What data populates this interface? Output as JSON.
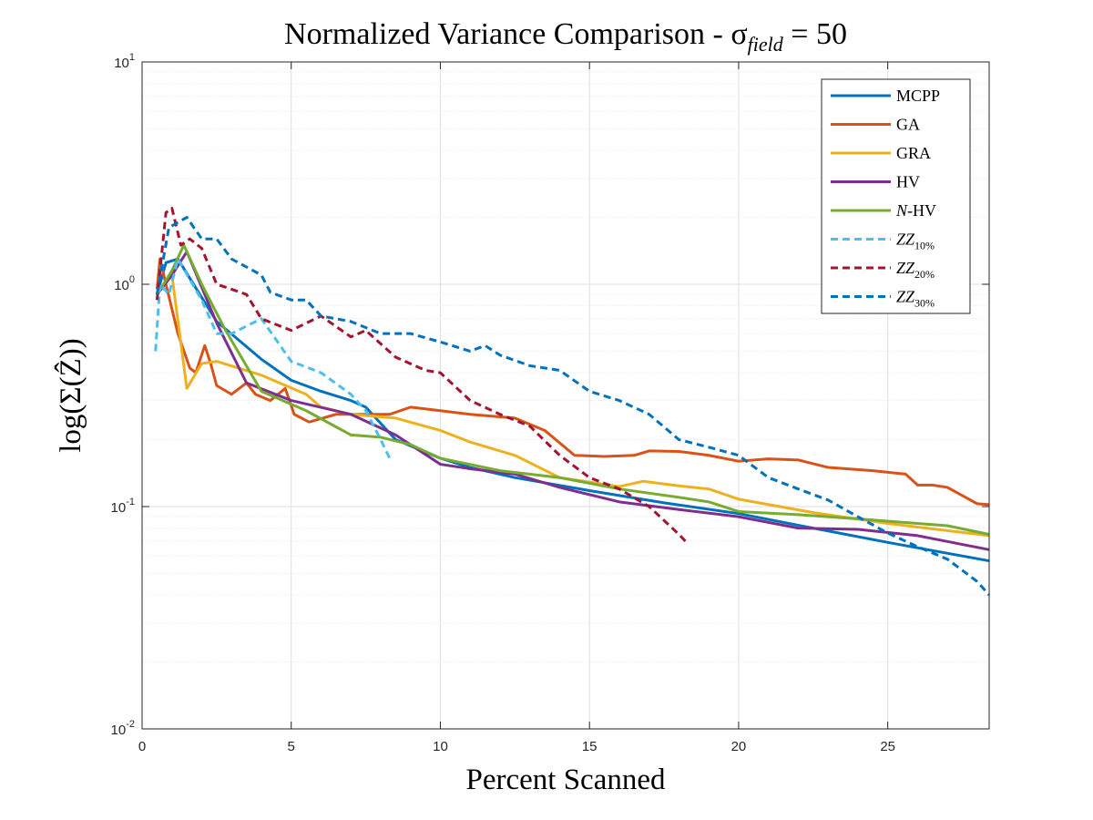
{
  "chart_data": {
    "type": "line",
    "title": "Normalized Variance Comparison - σ",
    "title_subscript": "field",
    "title_suffix": " = 50",
    "xlabel": "Percent Scanned",
    "ylabel": "log(Σ(Ẑ))",
    "xlim": [
      0,
      28.4
    ],
    "ylim": [
      0.01,
      10
    ],
    "yscale": "log",
    "grid": true,
    "legend_position": "top-right",
    "x_ticks": [
      0,
      5,
      10,
      15,
      20,
      25
    ],
    "x_tick_labels": [
      "0",
      "5",
      "10",
      "15",
      "20",
      "25"
    ],
    "y_ticks": [
      0.01,
      0.1,
      1,
      10
    ],
    "y_tick_labels": [
      {
        "base": "10",
        "exp": "-2"
      },
      {
        "base": "10",
        "exp": "-1"
      },
      {
        "base": "10",
        "exp": "0"
      },
      {
        "base": "10",
        "exp": "1"
      }
    ],
    "series": [
      {
        "name": "MCPP",
        "label_prefix": "",
        "label_main": "MCPP",
        "label_sub": "",
        "color": "#0072BD",
        "dash": false,
        "points": [
          [
            0.5,
            0.9
          ],
          [
            0.8,
            1.25
          ],
          [
            1.2,
            1.3
          ],
          [
            2.5,
            0.68
          ],
          [
            4,
            0.46
          ],
          [
            5,
            0.37
          ],
          [
            6,
            0.33
          ],
          [
            7,
            0.3
          ],
          [
            7.5,
            0.28
          ],
          [
            8.5,
            0.2
          ],
          [
            10,
            0.165
          ],
          [
            11,
            0.15
          ],
          [
            12.5,
            0.135
          ],
          [
            15,
            0.118
          ],
          [
            17.5,
            0.104
          ],
          [
            20,
            0.093
          ],
          [
            22.5,
            0.08
          ],
          [
            25,
            0.069
          ],
          [
            28.4,
            0.057
          ]
        ]
      },
      {
        "name": "GA",
        "label_prefix": "",
        "label_main": "GA",
        "label_sub": "",
        "color": "#D95319",
        "dash": false,
        "points": [
          [
            0.5,
            0.95
          ],
          [
            0.6,
            1.3
          ],
          [
            0.8,
            1.0
          ],
          [
            1.2,
            0.6
          ],
          [
            1.6,
            0.42
          ],
          [
            1.8,
            0.4
          ],
          [
            2.1,
            0.53
          ],
          [
            2.3,
            0.44
          ],
          [
            2.5,
            0.35
          ],
          [
            3,
            0.32
          ],
          [
            3.5,
            0.36
          ],
          [
            3.8,
            0.32
          ],
          [
            4.3,
            0.3
          ],
          [
            4.8,
            0.34
          ],
          [
            5.1,
            0.26
          ],
          [
            5.6,
            0.24
          ],
          [
            6.5,
            0.26
          ],
          [
            7.5,
            0.26
          ],
          [
            8.3,
            0.26
          ],
          [
            9,
            0.28
          ],
          [
            10,
            0.27
          ],
          [
            11,
            0.26
          ],
          [
            12.5,
            0.25
          ],
          [
            13.5,
            0.22
          ],
          [
            14.5,
            0.17
          ],
          [
            15.5,
            0.168
          ],
          [
            16.5,
            0.17
          ],
          [
            17,
            0.178
          ],
          [
            18,
            0.177
          ],
          [
            19,
            0.17
          ],
          [
            20,
            0.16
          ],
          [
            21,
            0.164
          ],
          [
            22,
            0.162
          ],
          [
            23,
            0.15
          ],
          [
            24.5,
            0.145
          ],
          [
            25.6,
            0.14
          ],
          [
            26,
            0.125
          ],
          [
            26.5,
            0.125
          ],
          [
            27,
            0.122
          ],
          [
            27.5,
            0.112
          ],
          [
            28,
            0.103
          ],
          [
            28.4,
            0.102
          ]
        ]
      },
      {
        "name": "GRA",
        "label_prefix": "",
        "label_main": "GRA",
        "label_sub": "",
        "color": "#EDB120",
        "dash": false,
        "points": [
          [
            0.5,
            0.9
          ],
          [
            1,
            1.1
          ],
          [
            1.5,
            0.34
          ],
          [
            2,
            0.44
          ],
          [
            2.5,
            0.45
          ],
          [
            4,
            0.39
          ],
          [
            5.5,
            0.32
          ],
          [
            6,
            0.28
          ],
          [
            7,
            0.26
          ],
          [
            8.5,
            0.25
          ],
          [
            10,
            0.22
          ],
          [
            11,
            0.195
          ],
          [
            12.5,
            0.17
          ],
          [
            14,
            0.135
          ],
          [
            16,
            0.123
          ],
          [
            16.8,
            0.13
          ],
          [
            18,
            0.124
          ],
          [
            19,
            0.12
          ],
          [
            20,
            0.108
          ],
          [
            22.5,
            0.094
          ],
          [
            25,
            0.084
          ],
          [
            28.4,
            0.074
          ]
        ]
      },
      {
        "name": "HV",
        "label_prefix": "",
        "label_main": "HV",
        "label_sub": "",
        "color": "#7E2F8E",
        "dash": false,
        "points": [
          [
            0.5,
            0.9
          ],
          [
            1,
            1.1
          ],
          [
            1.5,
            1.4
          ],
          [
            2.5,
            0.67
          ],
          [
            3.5,
            0.36
          ],
          [
            5,
            0.3
          ],
          [
            7,
            0.26
          ],
          [
            8.5,
            0.21
          ],
          [
            10,
            0.155
          ],
          [
            11,
            0.148
          ],
          [
            12.5,
            0.14
          ],
          [
            14,
            0.122
          ],
          [
            16,
            0.105
          ],
          [
            18,
            0.097
          ],
          [
            20,
            0.09
          ],
          [
            22,
            0.08
          ],
          [
            24,
            0.079
          ],
          [
            26,
            0.074
          ],
          [
            28.4,
            0.064
          ]
        ]
      },
      {
        "name": "N-HV",
        "label_prefix": "N",
        "label_main": "-HV",
        "label_sub": "",
        "color": "#77AC30",
        "dash": false,
        "points": [
          [
            0.5,
            0.9
          ],
          [
            1,
            1.15
          ],
          [
            1.4,
            1.5
          ],
          [
            2,
            1.0
          ],
          [
            2.8,
            0.62
          ],
          [
            4,
            0.33
          ],
          [
            5.5,
            0.27
          ],
          [
            7,
            0.21
          ],
          [
            8,
            0.205
          ],
          [
            9,
            0.19
          ],
          [
            10,
            0.165
          ],
          [
            12,
            0.145
          ],
          [
            14,
            0.135
          ],
          [
            16,
            0.12
          ],
          [
            18,
            0.11
          ],
          [
            19,
            0.105
          ],
          [
            20,
            0.095
          ],
          [
            22,
            0.092
          ],
          [
            24,
            0.088
          ],
          [
            27,
            0.082
          ],
          [
            28.4,
            0.075
          ]
        ]
      },
      {
        "name": "ZZ10%",
        "label_prefix": "ZZ",
        "label_main": "",
        "label_sub": "10%",
        "color": "#4DBEEE",
        "dash": true,
        "points": [
          [
            0.45,
            0.5
          ],
          [
            0.6,
            1.0
          ],
          [
            0.9,
            0.9
          ],
          [
            1.2,
            1.3
          ],
          [
            2,
            0.85
          ],
          [
            2.5,
            0.6
          ],
          [
            3,
            0.6
          ],
          [
            4,
            0.7
          ],
          [
            5,
            0.45
          ],
          [
            6,
            0.4
          ],
          [
            7,
            0.32
          ],
          [
            7.5,
            0.27
          ],
          [
            8,
            0.2
          ],
          [
            8.3,
            0.165
          ]
        ]
      },
      {
        "name": "ZZ20%",
        "label_prefix": "ZZ",
        "label_main": "",
        "label_sub": "20%",
        "color": "#A2142F",
        "dash": true,
        "points": [
          [
            0.5,
            0.85
          ],
          [
            0.8,
            2.1
          ],
          [
            1,
            2.2
          ],
          [
            1.3,
            1.5
          ],
          [
            1.6,
            1.6
          ],
          [
            2,
            1.45
          ],
          [
            2.5,
            1.0
          ],
          [
            3,
            0.95
          ],
          [
            3.5,
            0.9
          ],
          [
            4,
            0.7
          ],
          [
            5,
            0.62
          ],
          [
            6,
            0.72
          ],
          [
            7,
            0.58
          ],
          [
            7.5,
            0.62
          ],
          [
            8.5,
            0.47
          ],
          [
            9.5,
            0.41
          ],
          [
            10,
            0.4
          ],
          [
            11,
            0.3
          ],
          [
            12,
            0.26
          ],
          [
            13,
            0.23
          ],
          [
            14,
            0.17
          ],
          [
            15,
            0.135
          ],
          [
            16,
            0.12
          ],
          [
            17,
            0.1
          ],
          [
            18,
            0.075
          ],
          [
            18.3,
            0.068
          ]
        ]
      },
      {
        "name": "ZZ30%",
        "label_prefix": "ZZ",
        "label_main": "",
        "label_sub": "30%",
        "color": "#0072BD",
        "dash": true,
        "points": [
          [
            0.5,
            0.9
          ],
          [
            0.9,
            1.8
          ],
          [
            1.5,
            2.0
          ],
          [
            2,
            1.6
          ],
          [
            2.5,
            1.6
          ],
          [
            3,
            1.3
          ],
          [
            4,
            1.1
          ],
          [
            4.3,
            0.92
          ],
          [
            5,
            0.85
          ],
          [
            5.5,
            0.85
          ],
          [
            6,
            0.72
          ],
          [
            7,
            0.68
          ],
          [
            8,
            0.6
          ],
          [
            9,
            0.6
          ],
          [
            10,
            0.55
          ],
          [
            11,
            0.5
          ],
          [
            11.5,
            0.53
          ],
          [
            12,
            0.48
          ],
          [
            13,
            0.43
          ],
          [
            14,
            0.41
          ],
          [
            15,
            0.33
          ],
          [
            16,
            0.3
          ],
          [
            17,
            0.26
          ],
          [
            18,
            0.2
          ],
          [
            19,
            0.185
          ],
          [
            20,
            0.17
          ],
          [
            21,
            0.135
          ],
          [
            22,
            0.12
          ],
          [
            23,
            0.107
          ],
          [
            24,
            0.09
          ],
          [
            25,
            0.076
          ],
          [
            26,
            0.066
          ],
          [
            27,
            0.058
          ],
          [
            28,
            0.046
          ],
          [
            28.4,
            0.04
          ]
        ]
      }
    ]
  }
}
